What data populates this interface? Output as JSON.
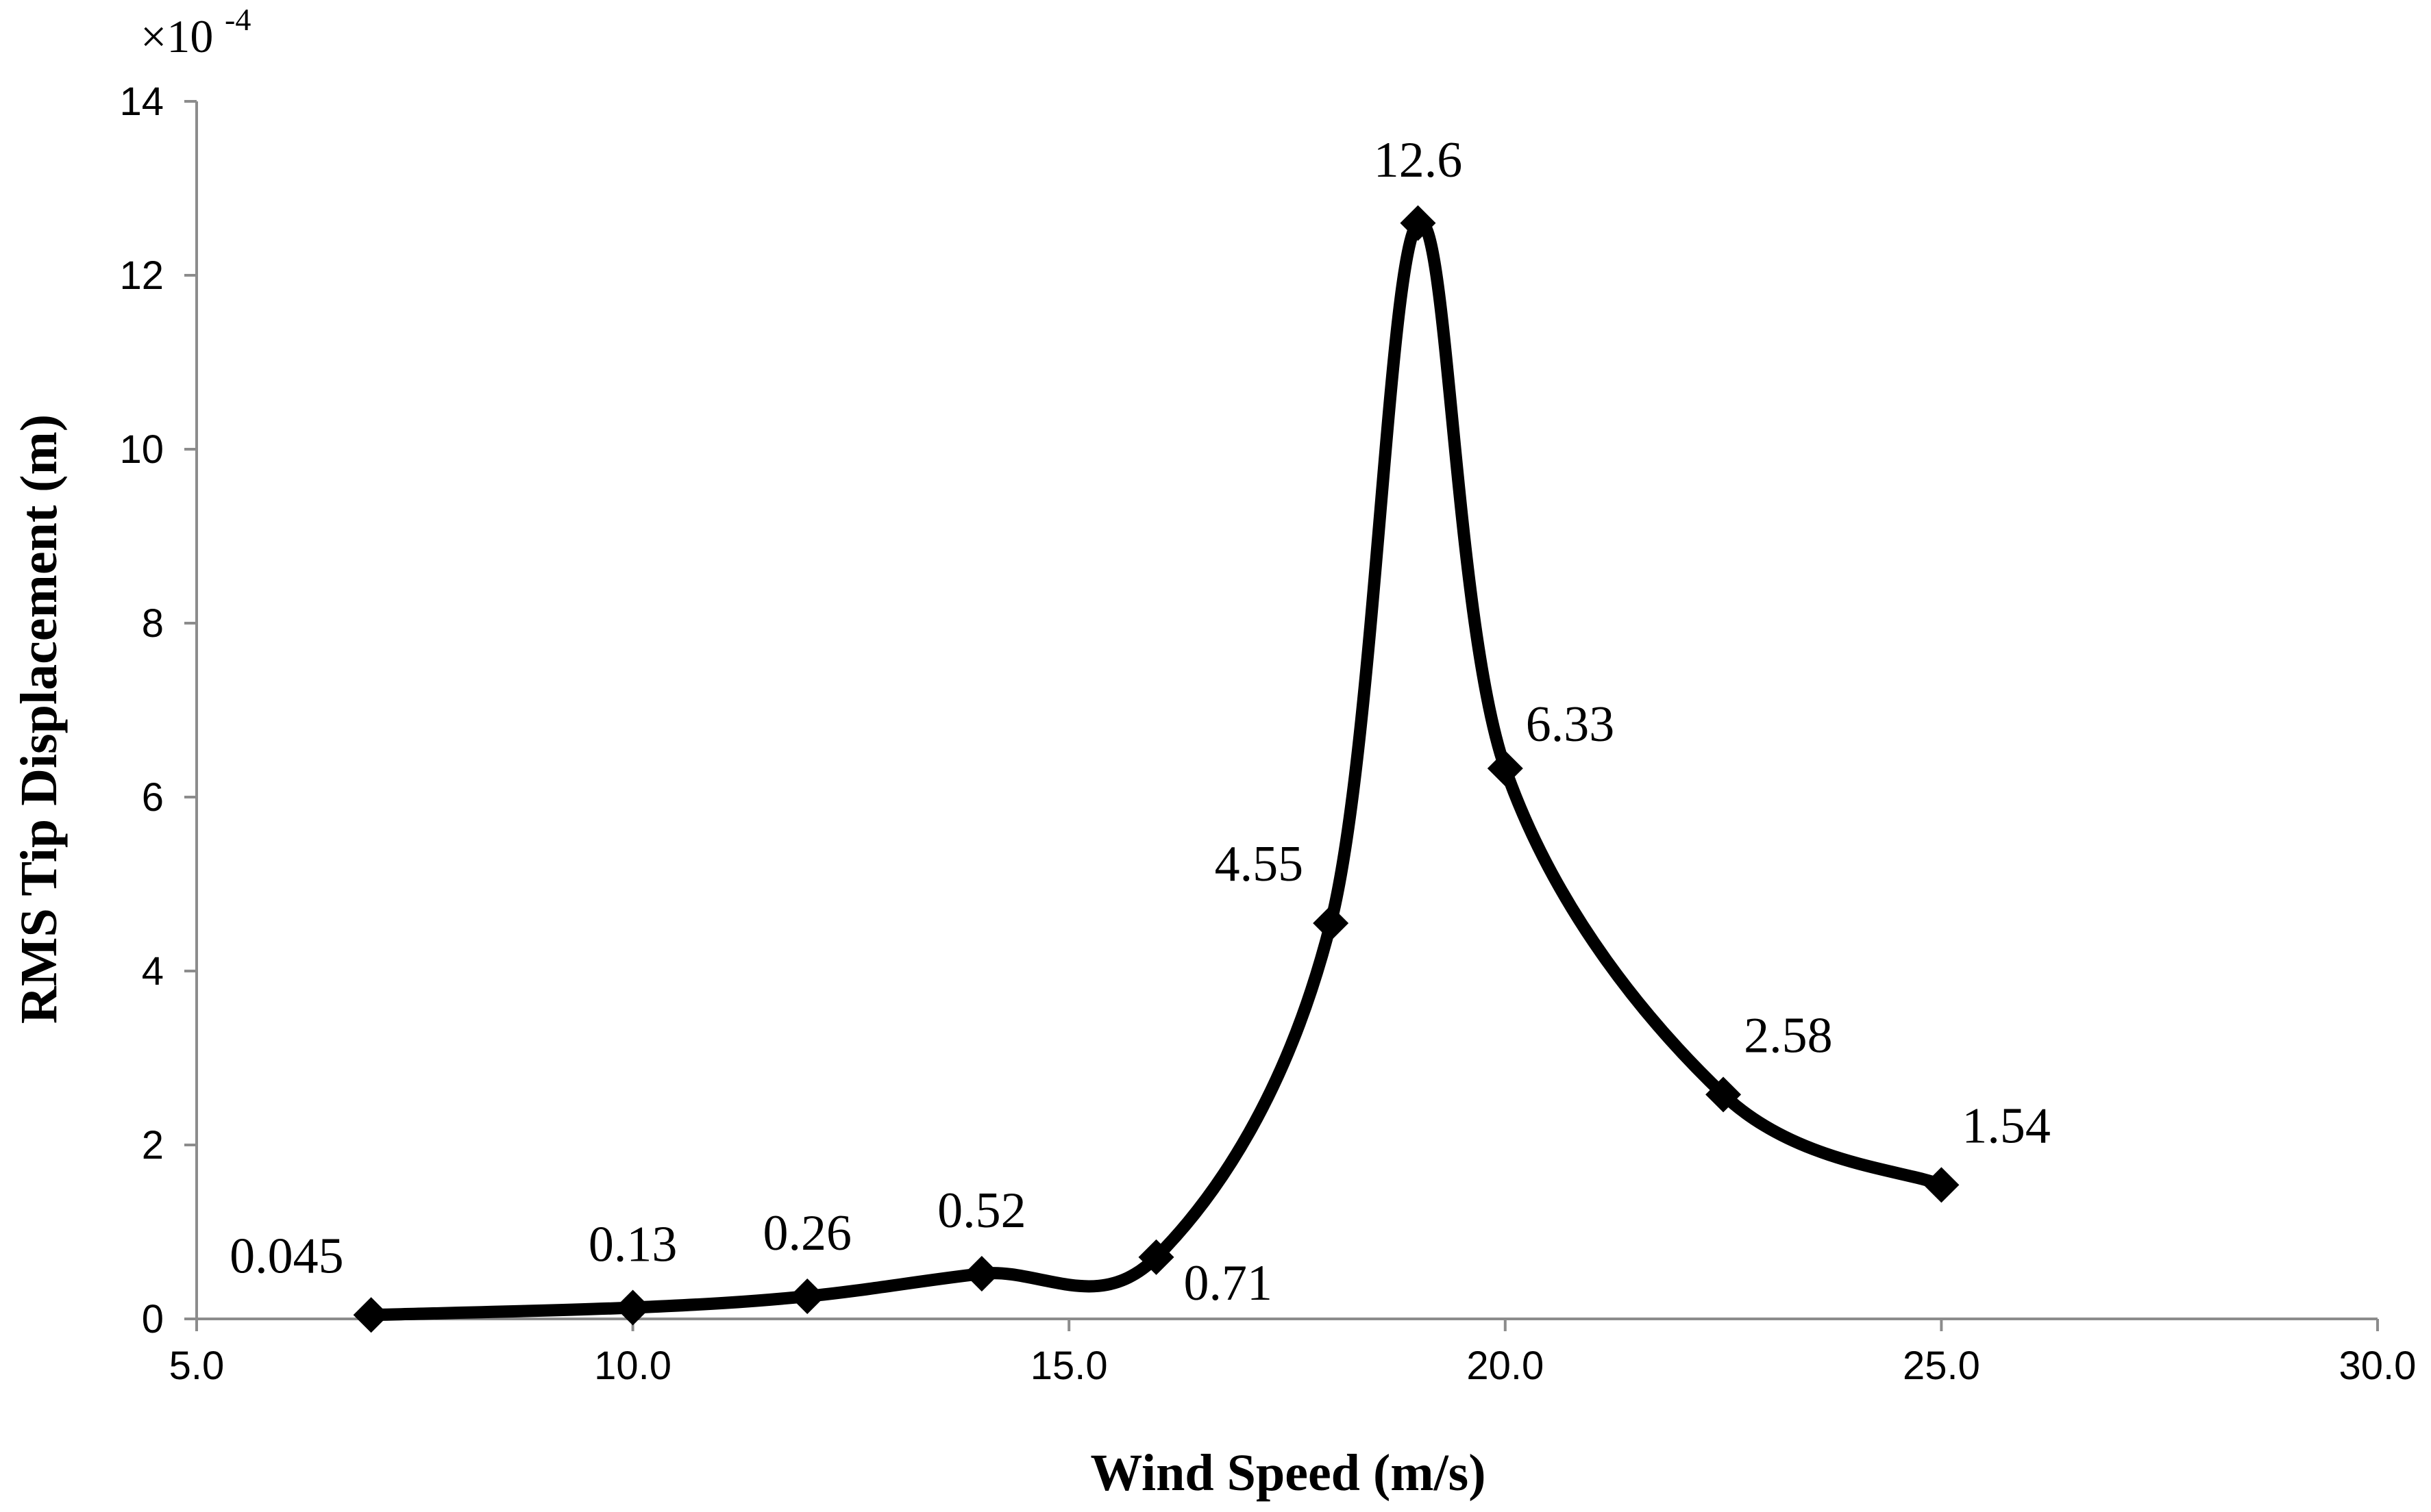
{
  "chart_data": {
    "type": "line",
    "title": "",
    "xlabel": "Wind Speed (m/s)",
    "ylabel": "RMS Tip Displacement (m)",
    "y_scale_prefix": "×10",
    "y_scale_exponent": "-4",
    "xlim": [
      5.0,
      30.0
    ],
    "ylim": [
      0,
      14
    ],
    "x_ticks": [
      "5.0",
      "10.0",
      "15.0",
      "20.0",
      "25.0",
      "30.0"
    ],
    "y_ticks": [
      "0",
      "2",
      "4",
      "6",
      "8",
      "10",
      "12",
      "14"
    ],
    "grid": false,
    "legend": "none",
    "series": [
      {
        "name": "RMS Tip Displacement",
        "marker": "diamond",
        "color": "#000000",
        "smooth": true,
        "x": [
          7,
          10,
          12,
          14,
          16,
          18,
          19,
          20,
          22.5,
          25
        ],
        "y": [
          0.045,
          0.13,
          0.26,
          0.52,
          0.71,
          4.55,
          12.6,
          6.33,
          2.58,
          1.54
        ],
        "labels": [
          "0.045",
          "0.13",
          "0.26",
          "0.52",
          "0.71",
          "4.55",
          "12.6",
          "6.33",
          "2.58",
          "1.54"
        ],
        "label_positions": [
          "top-left",
          "top",
          "top",
          "top",
          "bottom-right",
          "top-left",
          "top",
          "right",
          "top-right",
          "top-right"
        ]
      }
    ]
  }
}
